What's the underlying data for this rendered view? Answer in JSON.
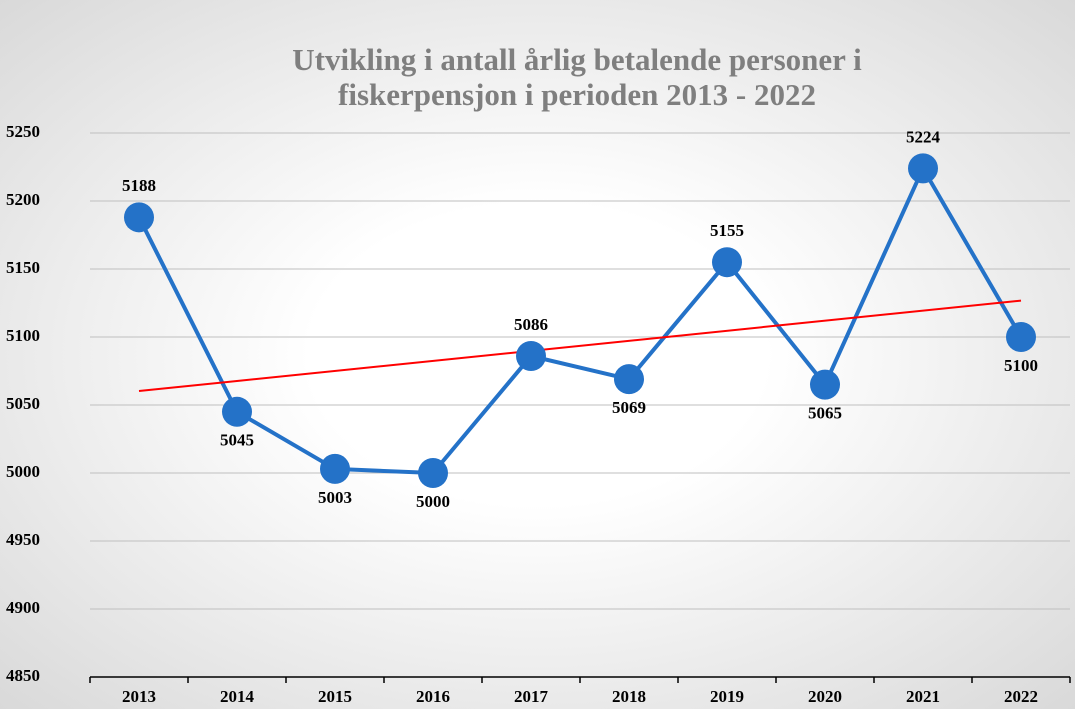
{
  "chart_data": {
    "type": "line",
    "title": "Utvikling i antall årlig betalende personer i fiskerpensjon i perioden 2013 - 2022",
    "categories": [
      "2013",
      "2014",
      "2015",
      "2016",
      "2017",
      "2018",
      "2019",
      "2020",
      "2021",
      "2022"
    ],
    "series": [
      {
        "color": "#2472c8",
        "values": [
          5188,
          5045,
          5003,
          5000,
          5086,
          5069,
          5155,
          5065,
          5224,
          5100
        ]
      }
    ],
    "ylim": [
      4850,
      5250
    ],
    "yticks": [
      4850,
      4900,
      4950,
      5000,
      5050,
      5100,
      5150,
      5200,
      5250
    ],
    "grid": true,
    "trendline": {
      "type": "linear",
      "color": "#ff0000"
    }
  }
}
